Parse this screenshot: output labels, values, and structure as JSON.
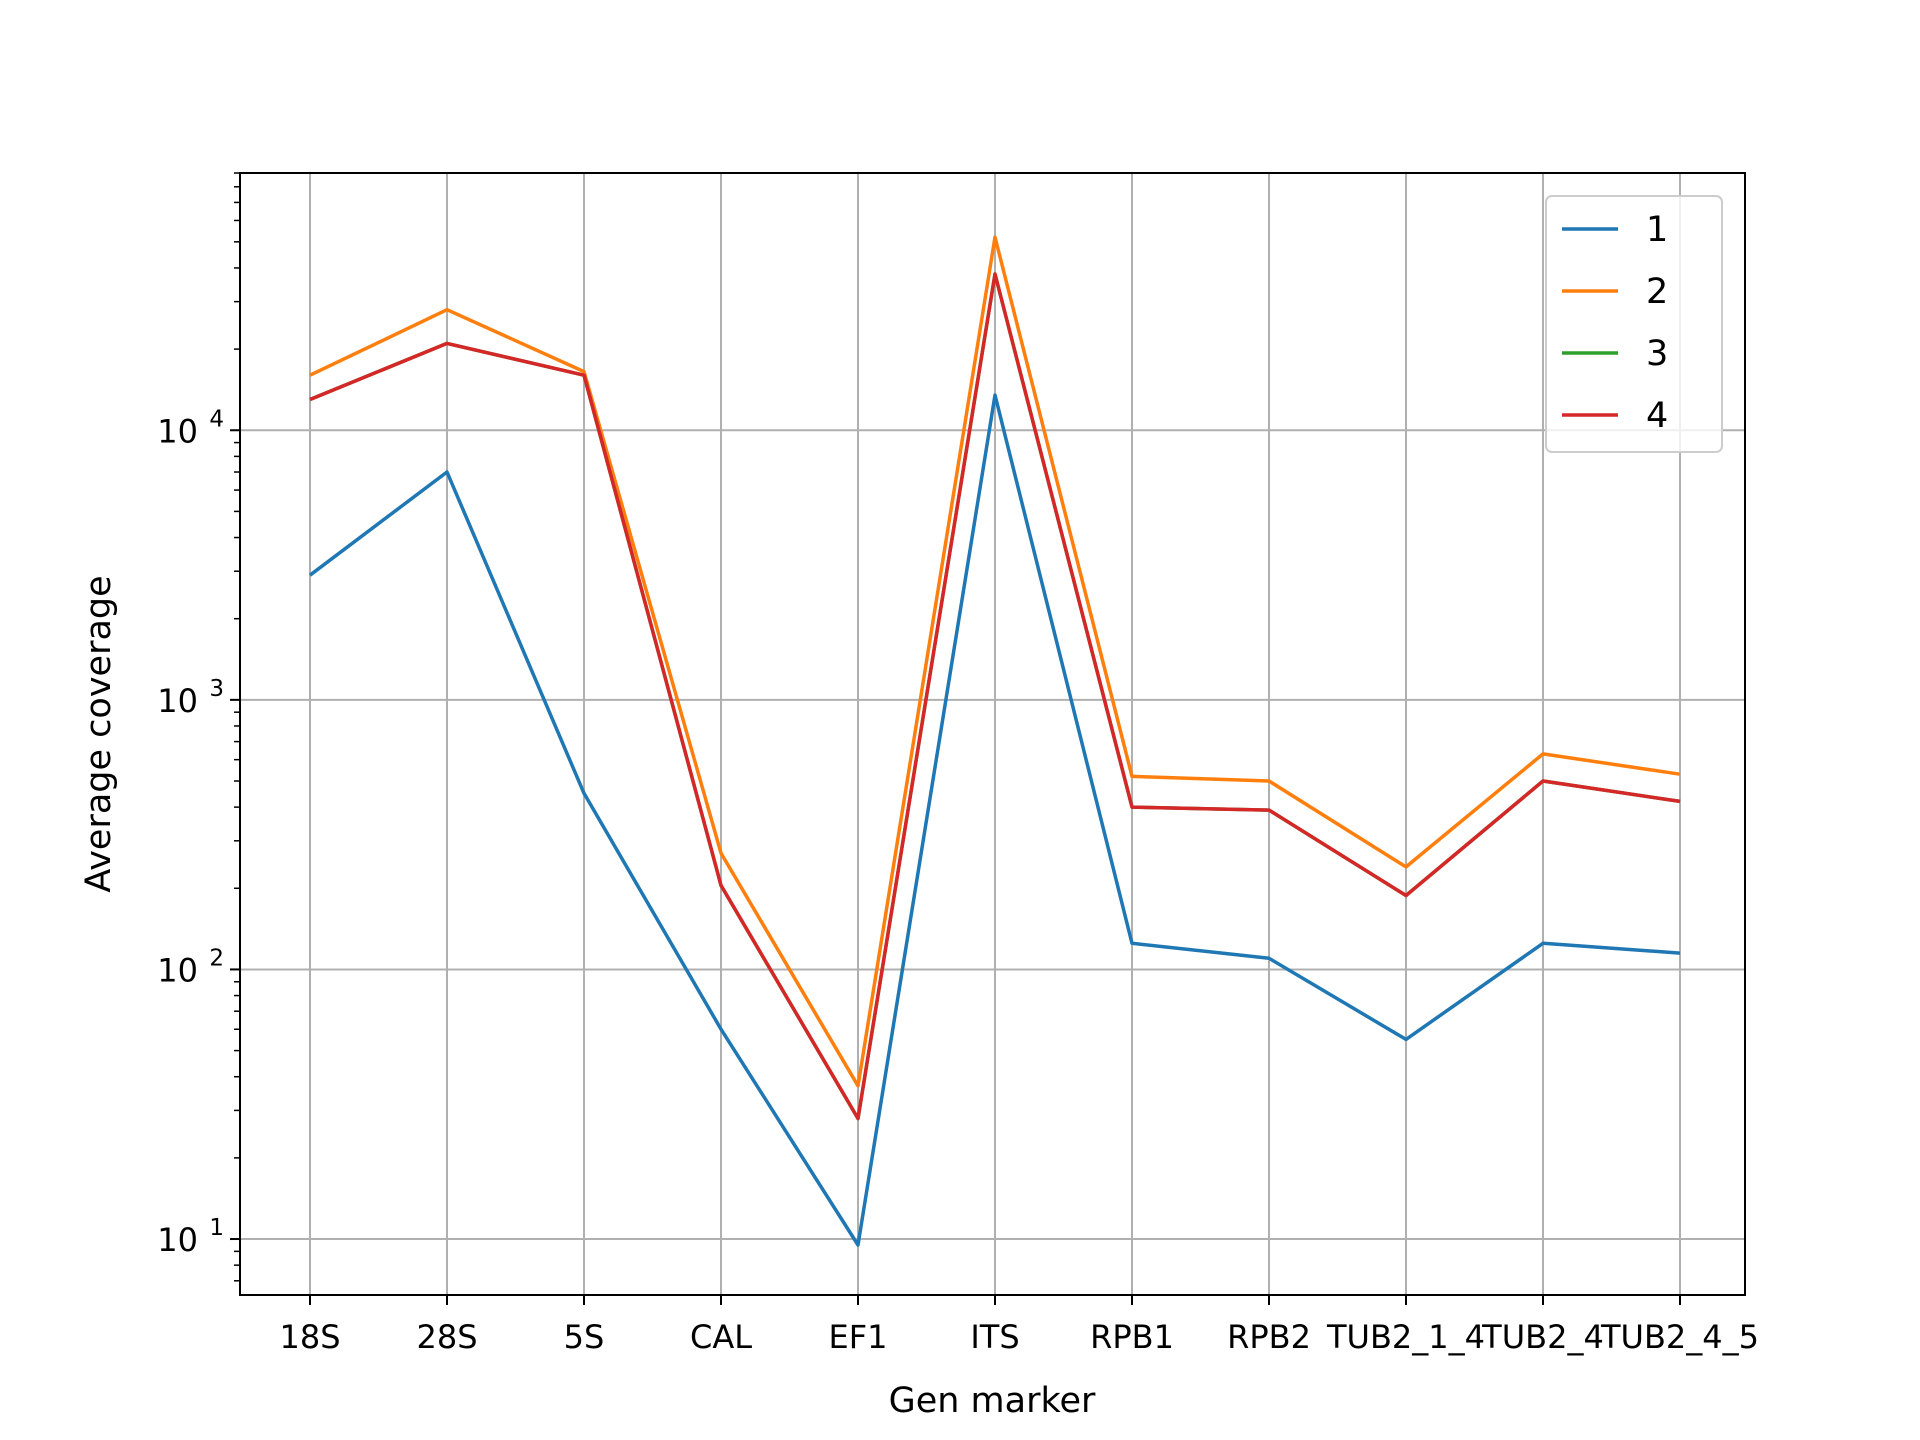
{
  "chart_data": {
    "type": "line",
    "title": "",
    "xlabel": "Gen marker",
    "ylabel": "Average coverage",
    "yscale": "log",
    "ylim": [
      6.2,
      90000
    ],
    "grid": true,
    "legend_position": "top-right",
    "categories": [
      "18S",
      "28S",
      "5S",
      "CAL",
      "EF1",
      "ITS",
      "RPB1",
      "RPB2",
      "TUB2_1_4",
      "TUB2_4",
      "TUB2_4_5"
    ],
    "yticks": [
      {
        "base": "10",
        "exp": "1",
        "value": 10
      },
      {
        "base": "10",
        "exp": "2",
        "value": 100
      },
      {
        "base": "10",
        "exp": "3",
        "value": 1000
      },
      {
        "base": "10",
        "exp": "4",
        "value": 10000
      }
    ],
    "series": [
      {
        "name": "1",
        "color": "#1f77b4",
        "values": [
          2900,
          7000,
          450,
          60,
          9.5,
          13500,
          125,
          110,
          55,
          125,
          115
        ]
      },
      {
        "name": "2",
        "color": "#ff7f0e",
        "values": [
          16000,
          28000,
          16500,
          270,
          37,
          52000,
          520,
          500,
          240,
          630,
          530
        ]
      },
      {
        "name": "3",
        "color": "#2ca02c",
        "values": [
          13000,
          21000,
          16000,
          205,
          28,
          38000,
          400,
          390,
          188,
          500,
          420
        ]
      },
      {
        "name": "4",
        "color": "#d62728",
        "values": [
          13000,
          21000,
          16000,
          205,
          28,
          38000,
          400,
          390,
          188,
          500,
          420
        ]
      }
    ]
  }
}
